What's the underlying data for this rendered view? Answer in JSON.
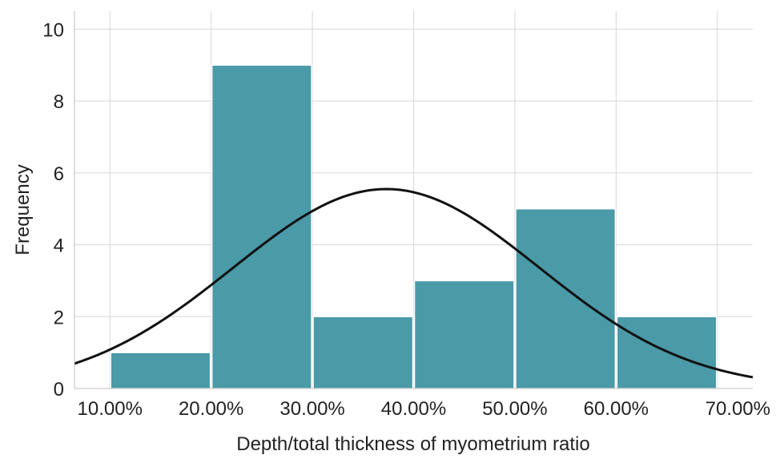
{
  "chart_data": {
    "type": "bar",
    "xlabel": "Depth/total thickness of myometrium ratio",
    "ylabel": "Frequency",
    "x_tick_labels": [
      "10.00%",
      "20.00%",
      "30.00%",
      "40.00%",
      "50.00%",
      "60.00%",
      "70.00%"
    ],
    "x_ticks": [
      10,
      20,
      30,
      40,
      50,
      60,
      70
    ],
    "xlim": [
      6.5,
      73.5
    ],
    "y_tick_labels": [
      "0",
      "2",
      "4",
      "6",
      "8",
      "10"
    ],
    "y_ticks": [
      0,
      2,
      4,
      6,
      8,
      10
    ],
    "ylim": [
      0,
      10.5
    ],
    "grid": true,
    "bins": [
      {
        "start": 10,
        "end": 20,
        "value": 1
      },
      {
        "start": 20,
        "end": 30,
        "value": 9
      },
      {
        "start": 30,
        "end": 40,
        "value": 2
      },
      {
        "start": 40,
        "end": 50,
        "value": 3
      },
      {
        "start": 50,
        "end": 60,
        "value": 5
      },
      {
        "start": 60,
        "end": 70,
        "value": 2
      }
    ],
    "normal_curve": {
      "mean": 37.3,
      "std": 15.1,
      "peak": 5.55
    },
    "colors": {
      "bar": "#4a9aa8",
      "curve": "#111111",
      "grid": "#d8d8d8"
    }
  }
}
